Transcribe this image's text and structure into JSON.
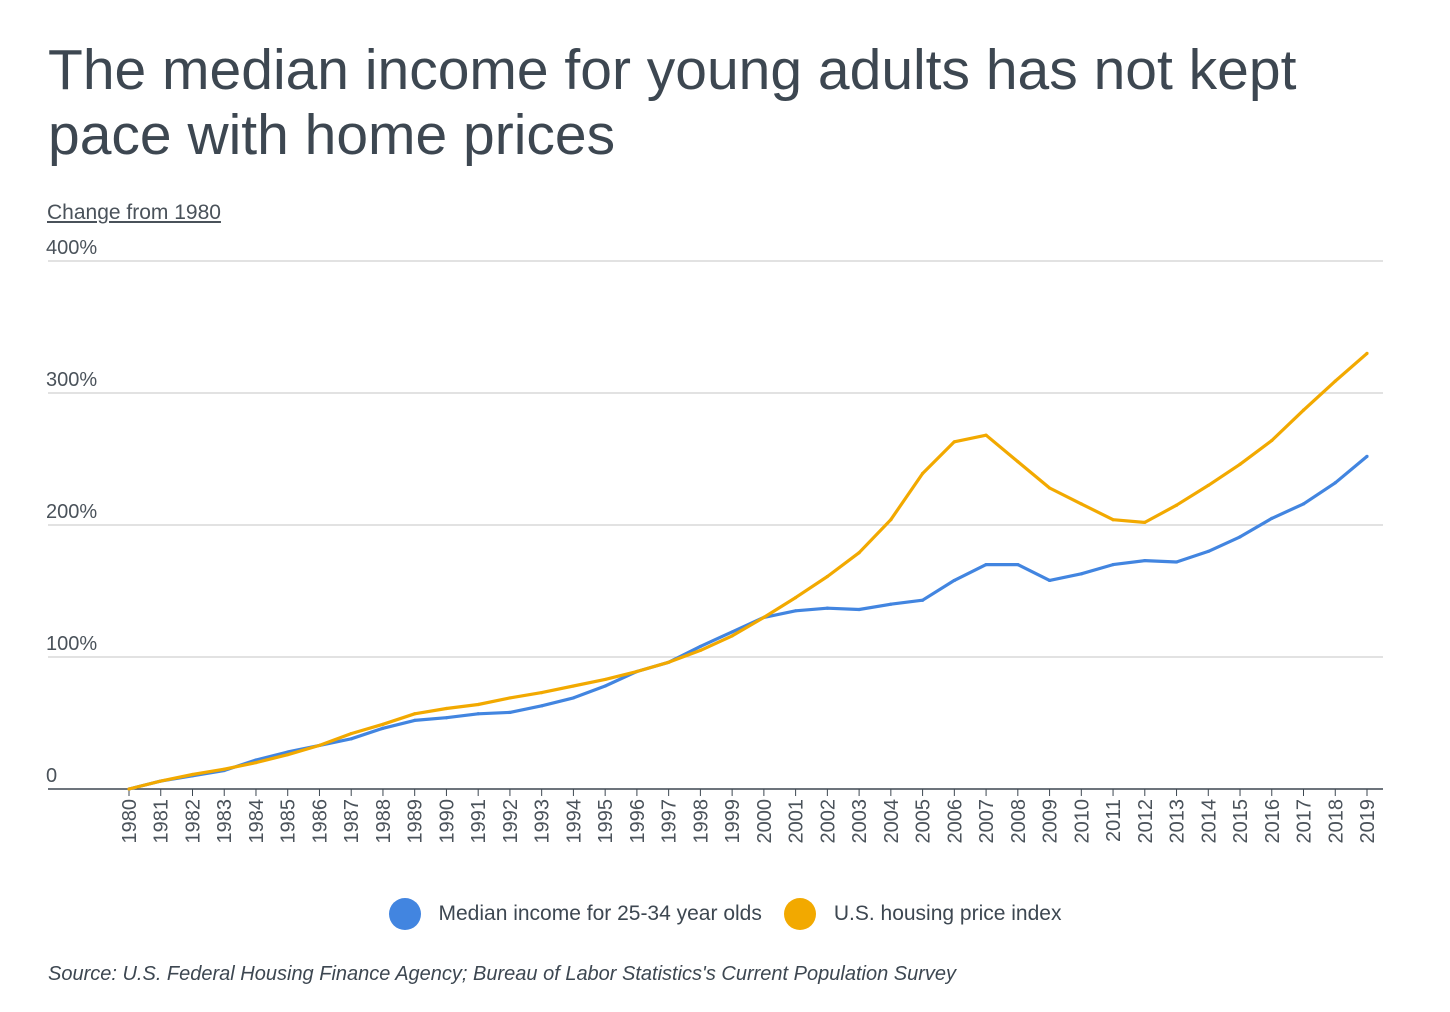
{
  "chart_data": {
    "type": "line",
    "title": "The median income for young adults has not kept pace with home prices",
    "ylabel": "Change from 1980",
    "xlabel": "",
    "ylim": [
      0,
      400
    ],
    "yticks": [
      {
        "value": 0,
        "label": "0"
      },
      {
        "value": 100,
        "label": "100%"
      },
      {
        "value": 200,
        "label": "200%"
      },
      {
        "value": 300,
        "label": "300%"
      },
      {
        "value": 400,
        "label": "400%"
      }
    ],
    "grid": true,
    "legend_position": "bottom",
    "x": [
      "1980",
      "1981",
      "1982",
      "1983",
      "1984",
      "1985",
      "1986",
      "1987",
      "1988",
      "1989",
      "1990",
      "1991",
      "1992",
      "1993",
      "1994",
      "1995",
      "1996",
      "1997",
      "1998",
      "1999",
      "2000",
      "2001",
      "2002",
      "2003",
      "2004",
      "2005",
      "2006",
      "2007",
      "2008",
      "2009",
      "2010",
      "2011",
      "2012",
      "2013",
      "2014",
      "2015",
      "2016",
      "2017",
      "2018",
      "2019"
    ],
    "series": [
      {
        "name": "Median income for 25-34 year olds",
        "color": "#4285e0",
        "values": [
          0,
          6,
          10,
          14,
          22,
          28,
          33,
          38,
          46,
          52,
          54,
          57,
          58,
          63,
          69,
          78,
          89,
          96,
          108,
          119,
          130,
          135,
          137,
          136,
          140,
          143,
          158,
          170,
          170,
          158,
          163,
          170,
          173,
          172,
          180,
          191,
          205,
          216,
          232,
          252
        ]
      },
      {
        "name": "U.S. housing price index",
        "color": "#f2a900",
        "values": [
          0,
          6,
          11,
          15,
          20,
          26,
          33,
          42,
          49,
          57,
          61,
          64,
          69,
          73,
          78,
          83,
          89,
          96,
          105,
          116,
          130,
          145,
          161,
          179,
          204,
          239,
          263,
          268,
          248,
          228,
          216,
          204,
          202,
          215,
          230,
          246,
          264,
          287,
          309,
          330
        ]
      }
    ],
    "source": "Source: U.S. Federal Housing Finance Agency; Bureau of Labor Statistics's Current Population Survey"
  }
}
